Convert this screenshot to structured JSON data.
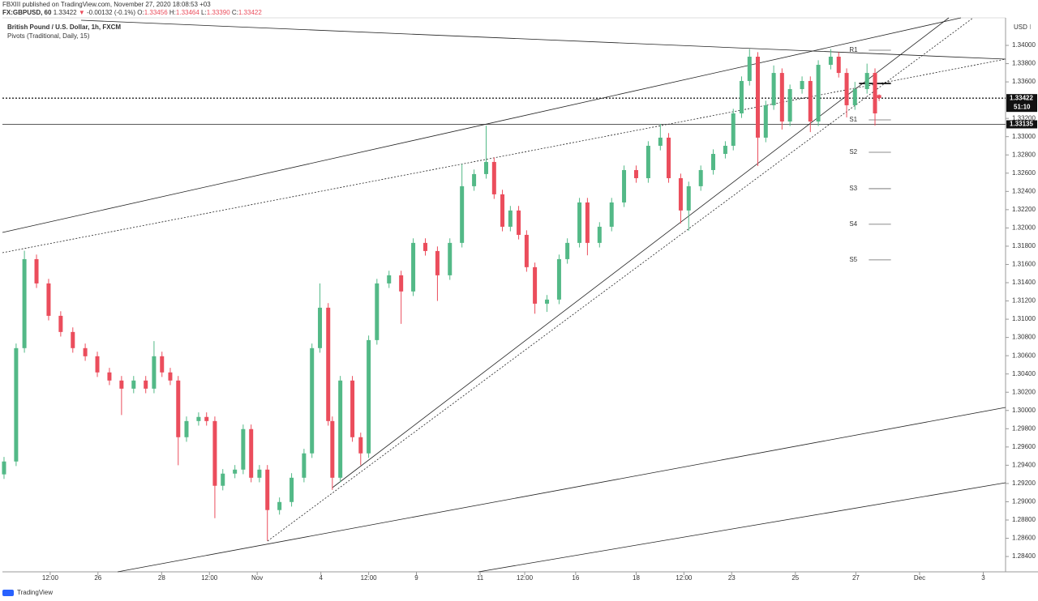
{
  "header": {
    "publisher": "FBXIII published on TradingView.com, November 27, 2020 18:08:53 +03",
    "symbol": "FX:GBPUSD, 60",
    "last": "1.33422",
    "arrow": "▼",
    "change": "-0.00132 (-0.1%)",
    "o_label": "O:",
    "o": "1.33456",
    "h_label": "H:",
    "h": "1.33464",
    "l_label": "L:",
    "l": "1.33390",
    "c_label": "C:",
    "c": "1.33422",
    "instrument": "British Pound / U.S. Dollar, 1h, FXCM",
    "indicator": "Pivots (Traditional, Daily, 15)",
    "logo": "TradingView"
  },
  "chart_data": {
    "type": "candlestick",
    "currency": "USD ⁝",
    "up_color": "#53b987",
    "down_color": "#eb4d5c",
    "xlim": [
      0,
      31.5
    ],
    "ylim": [
      1.28232,
      1.34302
    ],
    "grid": false,
    "x": [
      0.05,
      0.43,
      0.69,
      1.07,
      1.45,
      1.83,
      2.21,
      2.6,
      2.98,
      3.36,
      3.74,
      4.12,
      4.5,
      4.76,
      5.01,
      5.27,
      5.52,
      5.78,
      6.16,
      6.41,
      6.67,
      6.92,
      7.3,
      7.56,
      7.81,
      8.07,
      8.32,
      8.7,
      9.08,
      9.47,
      9.72,
      9.97,
      10.23,
      10.36,
      10.61,
      10.99,
      11.25,
      11.5,
      11.76,
      12.14,
      12.52,
      12.9,
      13.28,
      13.66,
      14.05,
      14.43,
      14.81,
      15.19,
      15.44,
      15.7,
      15.95,
      16.21,
      16.46,
      16.72,
      17.1,
      17.48,
      17.74,
      18.12,
      18.37,
      18.75,
      19.13,
      19.52,
      19.9,
      20.28,
      20.66,
      20.92,
      21.3,
      21.55,
      21.93,
      22.32,
      22.7,
      22.95,
      23.21,
      23.46,
      23.72,
      23.97,
      24.22,
      24.48,
      24.73,
      25.11,
      25.37,
      25.62,
      26.01,
      26.26,
      26.51,
      26.77,
      27.15,
      27.4,
      27.53
    ],
    "open": [
      1.293,
      1.29441,
      1.30683,
      1.31658,
      1.31392,
      1.31037,
      1.3086,
      1.30683,
      1.30594,
      1.30417,
      1.30328,
      1.30239,
      1.30328,
      1.30239,
      1.30594,
      1.30417,
      1.30328,
      1.29707,
      1.29884,
      1.29929,
      1.29884,
      1.29175,
      1.29308,
      1.29352,
      1.29796,
      1.29263,
      1.29352,
      1.28909,
      1.28997,
      1.29263,
      1.2953,
      1.30683,
      1.31126,
      1.29884,
      1.29263,
      1.30328,
      1.29707,
      1.2953,
      1.30771,
      1.31392,
      1.31481,
      1.31304,
      1.31836,
      1.31747,
      1.31481,
      1.31836,
      1.32457,
      1.3259,
      1.32723,
      1.32368,
      1.32013,
      1.32191,
      1.31924,
      1.3157,
      1.3117,
      1.31215,
      1.31658,
      1.31836,
      1.32279,
      1.31836,
      1.32013,
      1.32279,
      1.32634,
      1.32545,
      1.329,
      1.32989,
      1.32545,
      1.32191,
      1.32457,
      1.32634,
      1.32811,
      1.329,
      1.33255,
      1.3361,
      1.33876,
      1.32989,
      1.33344,
      1.33698,
      1.33166,
      1.33521,
      1.3361,
      1.33166,
      1.33787,
      1.33876,
      1.33698,
      1.33344,
      1.33521,
      1.33698,
      1.33456
    ],
    "high": [
      1.29491,
      1.30733,
      1.3175,
      1.31708,
      1.31442,
      1.31087,
      1.3091,
      1.30733,
      1.30644,
      1.30467,
      1.30378,
      1.30378,
      1.30378,
      1.3076,
      1.30644,
      1.30467,
      1.30378,
      1.29934,
      1.29979,
      1.29979,
      1.29934,
      1.29358,
      1.29402,
      1.29846,
      1.29846,
      1.29402,
      1.29402,
      1.29047,
      1.29313,
      1.2958,
      1.30733,
      1.31392,
      1.31176,
      1.29934,
      1.30378,
      1.30378,
      1.29757,
      1.30821,
      1.31442,
      1.31531,
      1.31531,
      1.31886,
      1.31886,
      1.31797,
      1.31886,
      1.327,
      1.3264,
      1.3312,
      1.32773,
      1.32418,
      1.32241,
      1.32241,
      1.31974,
      1.3162,
      1.31265,
      1.31708,
      1.31886,
      1.32329,
      1.32329,
      1.32063,
      1.32329,
      1.32684,
      1.32684,
      1.3295,
      1.3314,
      1.33039,
      1.32595,
      1.32507,
      1.32684,
      1.32861,
      1.3295,
      1.33305,
      1.3366,
      1.3396,
      1.33926,
      1.33394,
      1.3378,
      1.33748,
      1.33571,
      1.3366,
      1.3366,
      1.33837,
      1.3396,
      1.33926,
      1.33748,
      1.336,
      1.338,
      1.33748,
      1.33464
    ],
    "low": [
      1.2925,
      1.29391,
      1.30633,
      1.31342,
      1.30987,
      1.3081,
      1.30633,
      1.30544,
      1.30367,
      1.30278,
      1.2995,
      1.30189,
      1.30189,
      1.30189,
      1.30367,
      1.30278,
      1.294,
      1.29657,
      1.29834,
      1.29834,
      1.2882,
      1.29125,
      1.29258,
      1.29302,
      1.29213,
      1.29213,
      1.28572,
      1.28859,
      1.28947,
      1.29213,
      1.2948,
      1.30633,
      1.29834,
      1.2913,
      1.29213,
      1.29657,
      1.294,
      1.2948,
      1.30721,
      1.31342,
      1.30949,
      1.31254,
      1.31697,
      1.312,
      1.31431,
      1.31786,
      1.32407,
      1.3254,
      1.32318,
      1.31963,
      1.31963,
      1.31874,
      1.3152,
      1.3106,
      1.3108,
      1.31165,
      1.31608,
      1.31786,
      1.317,
      1.31786,
      1.31963,
      1.32229,
      1.32495,
      1.32495,
      1.3285,
      1.32495,
      1.3205,
      1.31969,
      1.32407,
      1.32584,
      1.32761,
      1.3285,
      1.33205,
      1.3356,
      1.32678,
      1.32939,
      1.33294,
      1.33078,
      1.33116,
      1.33471,
      1.3305,
      1.33116,
      1.33737,
      1.33648,
      1.33211,
      1.33294,
      1.33471,
      1.33122,
      1.3339
    ],
    "close": [
      1.29441,
      1.30683,
      1.31658,
      1.31392,
      1.31037,
      1.3086,
      1.30683,
      1.30594,
      1.30417,
      1.30328,
      1.30239,
      1.30328,
      1.30239,
      1.30594,
      1.30417,
      1.30328,
      1.29707,
      1.29884,
      1.29929,
      1.29884,
      1.29175,
      1.29308,
      1.29352,
      1.29796,
      1.29263,
      1.29352,
      1.28909,
      1.28997,
      1.29263,
      1.2953,
      1.30683,
      1.31126,
      1.29884,
      1.29263,
      1.30328,
      1.29707,
      1.2953,
      1.30771,
      1.31392,
      1.31481,
      1.31304,
      1.31836,
      1.31747,
      1.31481,
      1.31836,
      1.32457,
      1.3259,
      1.32723,
      1.32368,
      1.32013,
      1.32191,
      1.31924,
      1.3157,
      1.3117,
      1.31215,
      1.31658,
      1.31836,
      1.32279,
      1.31836,
      1.32013,
      1.32279,
      1.32634,
      1.32545,
      1.329,
      1.32989,
      1.32545,
      1.32191,
      1.32457,
      1.32634,
      1.32811,
      1.329,
      1.33255,
      1.3361,
      1.33876,
      1.32989,
      1.33344,
      1.33698,
      1.33166,
      1.33521,
      1.3361,
      1.33166,
      1.33787,
      1.33876,
      1.33698,
      1.33344,
      1.33521,
      1.33698,
      1.33255,
      1.33422
    ],
    "yticks": [
      {
        "value": 1.34,
        "label": "1.34000"
      },
      {
        "value": 1.338,
        "label": "1.33800"
      },
      {
        "value": 1.336,
        "label": "1.33600"
      },
      {
        "value": 1.332,
        "label": "1.33200"
      },
      {
        "value": 1.33,
        "label": "1.33000"
      },
      {
        "value": 1.328,
        "label": "1.32800"
      },
      {
        "value": 1.326,
        "label": "1.32600"
      },
      {
        "value": 1.324,
        "label": "1.32400"
      },
      {
        "value": 1.322,
        "label": "1.32200"
      },
      {
        "value": 1.32,
        "label": "1.32000"
      },
      {
        "value": 1.318,
        "label": "1.31800"
      },
      {
        "value": 1.316,
        "label": "1.31600"
      },
      {
        "value": 1.314,
        "label": "1.31400"
      },
      {
        "value": 1.312,
        "label": "1.31200"
      },
      {
        "value": 1.31,
        "label": "1.31000"
      },
      {
        "value": 1.308,
        "label": "1.30800"
      },
      {
        "value": 1.306,
        "label": "1.30600"
      },
      {
        "value": 1.304,
        "label": "1.30400"
      },
      {
        "value": 1.302,
        "label": "1.30200"
      },
      {
        "value": 1.3,
        "label": "1.30000"
      },
      {
        "value": 1.298,
        "label": "1.29800"
      },
      {
        "value": 1.296,
        "label": "1.29600"
      },
      {
        "value": 1.294,
        "label": "1.29400"
      },
      {
        "value": 1.292,
        "label": "1.29200"
      },
      {
        "value": 1.29,
        "label": "1.29000"
      },
      {
        "value": 1.288,
        "label": "1.28800"
      },
      {
        "value": 1.286,
        "label": "1.28600"
      },
      {
        "value": 1.284,
        "label": "1.28400"
      }
    ],
    "xticks": [
      {
        "value": 1.5,
        "label": "12:00"
      },
      {
        "value": 3,
        "label": "26"
      },
      {
        "value": 5,
        "label": "28"
      },
      {
        "value": 6.5,
        "label": "12:00"
      },
      {
        "value": 8,
        "label": "Nov"
      },
      {
        "value": 10,
        "label": "4"
      },
      {
        "value": 11.5,
        "label": "12:00"
      },
      {
        "value": 13,
        "label": "9"
      },
      {
        "value": 15,
        "label": "11"
      },
      {
        "value": 16.4,
        "label": "12:00"
      },
      {
        "value": 18,
        "label": "16"
      },
      {
        "value": 19.9,
        "label": "18"
      },
      {
        "value": 21.4,
        "label": "12:00"
      },
      {
        "value": 22.9,
        "label": "23"
      },
      {
        "value": 24.9,
        "label": "25"
      },
      {
        "value": 26.8,
        "label": "27"
      },
      {
        "value": 28.8,
        "label": "Dec"
      },
      {
        "value": 30.8,
        "label": "3"
      }
    ],
    "pivots": {
      "xrange": [
        26.9,
        27.9
      ],
      "labels": [
        "R1",
        null,
        "S1",
        "S2",
        "S3",
        "S4",
        "S5"
      ],
      "values": [
        1.33947,
        1.33583,
        1.33184,
        1.32829,
        1.3243,
        1.3204,
        1.3165
      ]
    },
    "price_lines": [
      {
        "label": "1.33422",
        "value": 1.33422,
        "countdown": "51:10",
        "style": "dotted"
      },
      {
        "label": "1.33135",
        "value": 1.33135,
        "style": "solid"
      }
    ]
  }
}
